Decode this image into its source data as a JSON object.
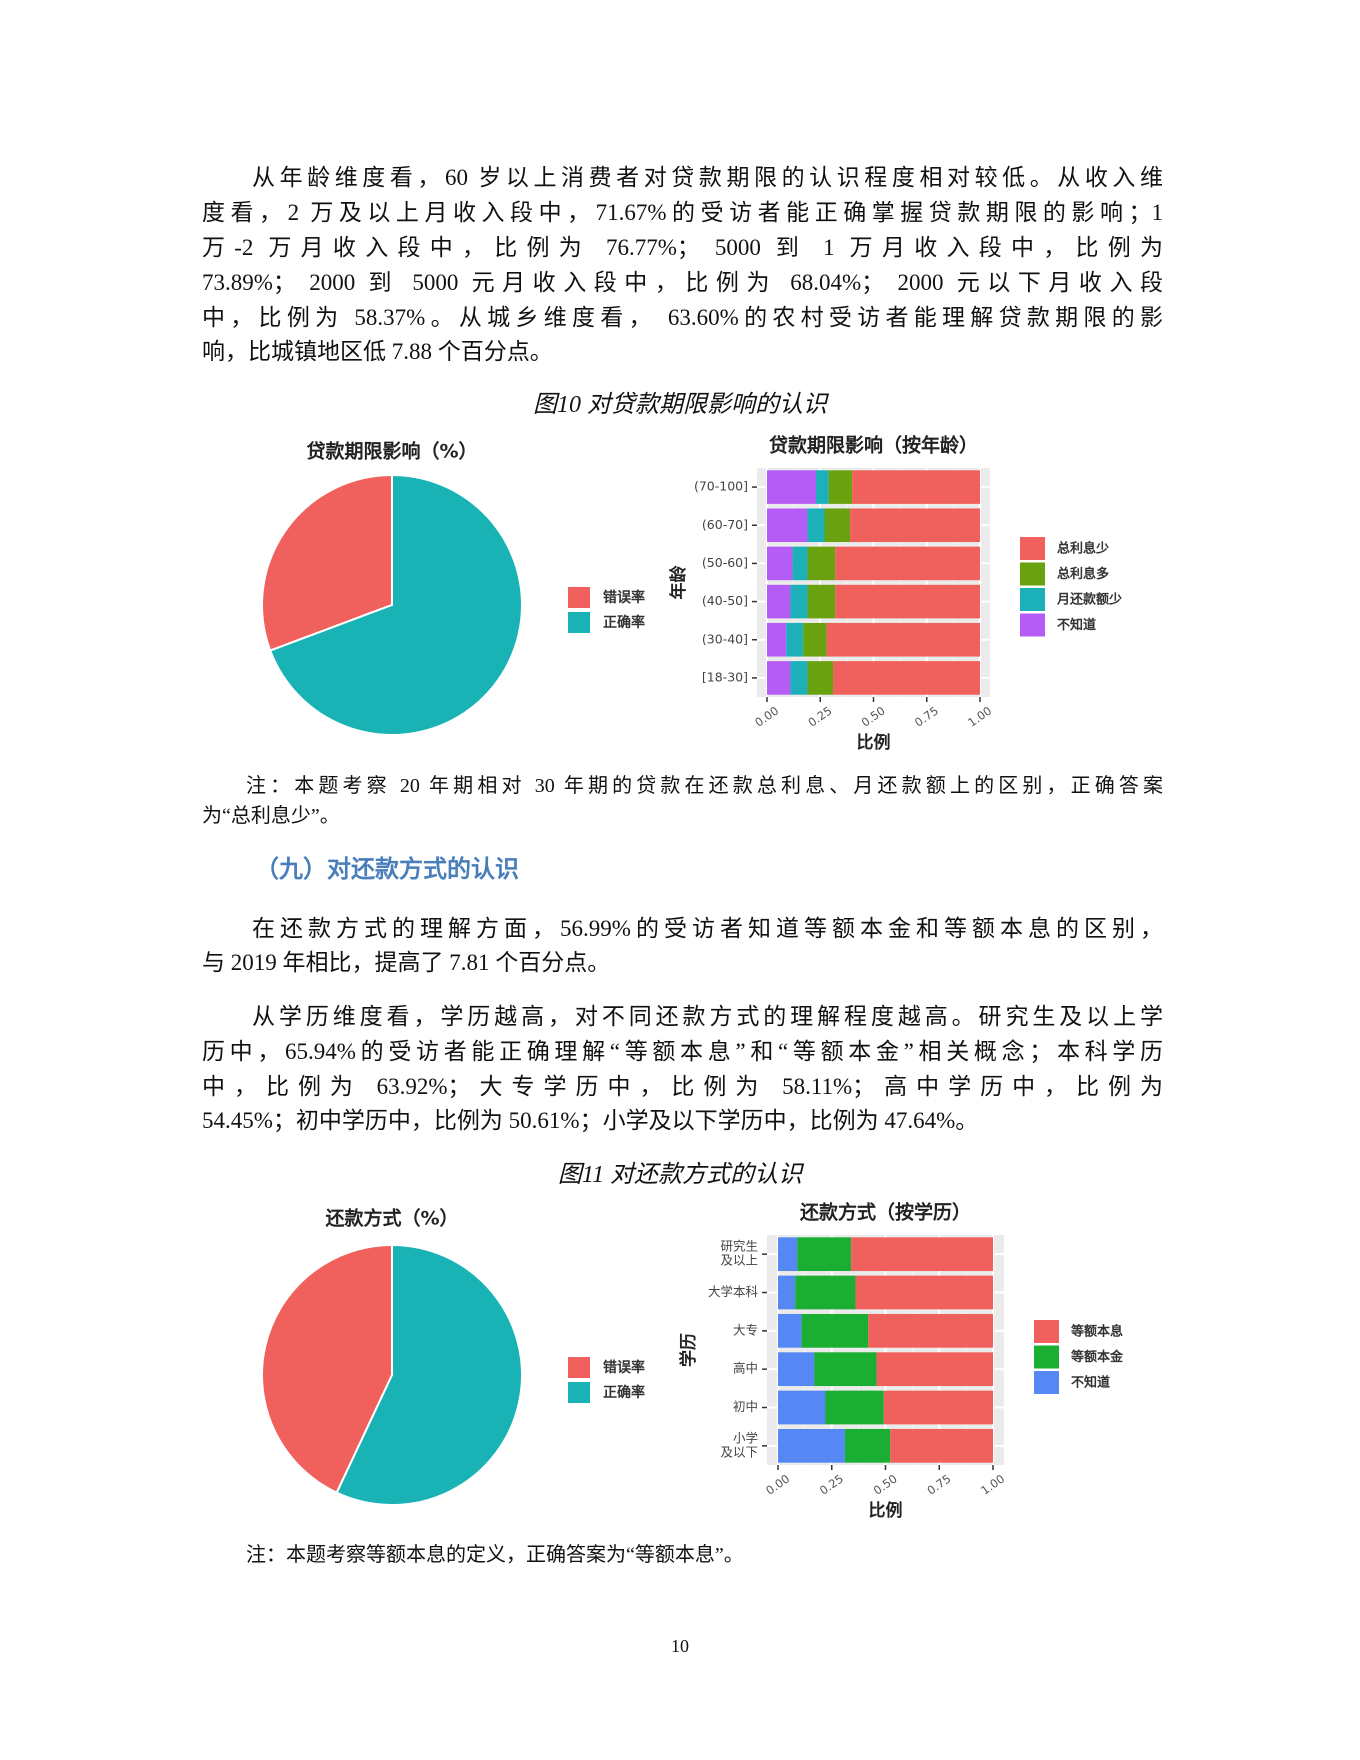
{
  "paragraph1": {
    "lines": [
      "从年龄维度看，60 岁以上消费者对贷款期限的认识程度相对较低。从收入维",
      "度看，2 万及以上月收入段中，71.67%的受访者能正确掌握贷款期限的影响；1",
      "万-2 万月收入段中，比例为 76.77%； 5000 到 1 万月收入段中，比例为",
      "73.89%； 2000 到 5000 元月收入段中，比例为 68.04%； 2000 元以下月收入段",
      "中，比例为 58.37%。从城乡维度看， 63.60%的农村受访者能理解贷款期限的影",
      "响，比城镇地区低 7.88 个百分点。"
    ]
  },
  "figure10": {
    "caption": "图10 对贷款期限影响的认识",
    "note_lines": [
      "注：本题考察 20 年期相对 30 年期的贷款在还款总利息、月还款额上的区别，正确答案",
      "为“总利息少”。"
    ]
  },
  "section_heading": "（九）对还款方式的认识",
  "paragraph2": {
    "lines": [
      "在还款方式的理解方面，56.99%的受访者知道等额本金和等额本息的区别，",
      "与 2019 年相比，提高了 7.81 个百分点。"
    ]
  },
  "paragraph3": {
    "lines": [
      "从学历维度看，学历越高，对不同还款方式的理解程度越高。研究生及以上学",
      "历中，65.94%的受访者能正确理解“等额本息”和“等额本金”相关概念；本科学历",
      "中，比例为 63.92%；大专学历中，比例为 58.11%；高中学历中，比例为",
      "54.45%；初中学历中，比例为 50.61%；小学及以下学历中，比例为 47.64%。"
    ]
  },
  "figure11": {
    "caption": "图11 对还款方式的认识",
    "note_lines": [
      "注：本题考察等额本息的定义，正确答案为“等额本息”。"
    ]
  },
  "page_number": "10",
  "chart_data": [
    {
      "type": "pie",
      "title": "贷款期限影响（%）",
      "categories": [
        "错误率",
        "正确率"
      ],
      "values": [
        30.7,
        69.3
      ],
      "colors": [
        "#F0605C",
        "#1AB3B5"
      ],
      "legend": "right"
    },
    {
      "type": "bar",
      "orientation": "horizontal",
      "stacked": "fill",
      "title": "贷款期限影响（按年龄）",
      "xlabel": "比例",
      "ylabel": "年龄",
      "xlim": [
        0,
        1
      ],
      "xticks": [
        "0.00",
        "0.25",
        "0.50",
        "0.75",
        "1.00"
      ],
      "categories": [
        "(70-100]",
        "(60-70]",
        "(50-60]",
        "(40-50]",
        "(30-40]",
        "[18-30]"
      ],
      "series": [
        {
          "name": "不知道",
          "color": "#B55CF5",
          "values": [
            0.23,
            0.19,
            0.12,
            0.11,
            0.09,
            0.11
          ]
        },
        {
          "name": "月还款额少",
          "color": "#1CB0B8",
          "values": [
            0.06,
            0.08,
            0.07,
            0.08,
            0.08,
            0.08
          ]
        },
        {
          "name": "总利息多",
          "color": "#6AA10F",
          "values": [
            0.11,
            0.12,
            0.13,
            0.13,
            0.11,
            0.12
          ]
        },
        {
          "name": "总利息少",
          "color": "#F0605C",
          "values": [
            0.6,
            0.61,
            0.68,
            0.68,
            0.72,
            0.69
          ]
        }
      ],
      "legend_order": [
        "总利息少",
        "总利息多",
        "月还款额少",
        "不知道"
      ],
      "legend": "right",
      "grid": true
    },
    {
      "type": "pie",
      "title": "还款方式（%）",
      "categories": [
        "错误率",
        "正确率"
      ],
      "values": [
        43.01,
        56.99
      ],
      "colors": [
        "#F0605C",
        "#1AB3B5"
      ],
      "legend": "right"
    },
    {
      "type": "bar",
      "orientation": "horizontal",
      "stacked": "fill",
      "title": "还款方式（按学历）",
      "xlabel": "比例",
      "ylabel": "学历",
      "xlim": [
        0,
        1
      ],
      "xticks": [
        "0.00",
        "0.25",
        "0.50",
        "0.75",
        "1.00"
      ],
      "categories": [
        [
          "研究生",
          "及以上"
        ],
        [
          "大学本科"
        ],
        [
          "大专"
        ],
        [
          "高中"
        ],
        [
          "初中"
        ],
        [
          "小学",
          "及以下"
        ]
      ],
      "series": [
        {
          "name": "不知道",
          "color": "#5588F5",
          "values": [
            0.09,
            0.08,
            0.11,
            0.17,
            0.22,
            0.31
          ]
        },
        {
          "name": "等额本金",
          "color": "#1AAE33",
          "values": [
            0.25,
            0.28,
            0.31,
            0.29,
            0.27,
            0.21
          ]
        },
        {
          "name": "等额本息",
          "color": "#F0605C",
          "values": [
            0.6594,
            0.6392,
            0.5811,
            0.5445,
            0.5061,
            0.4764
          ]
        }
      ],
      "legend_order": [
        "等额本息",
        "等额本金",
        "不知道"
      ],
      "legend": "right",
      "grid": true
    }
  ]
}
